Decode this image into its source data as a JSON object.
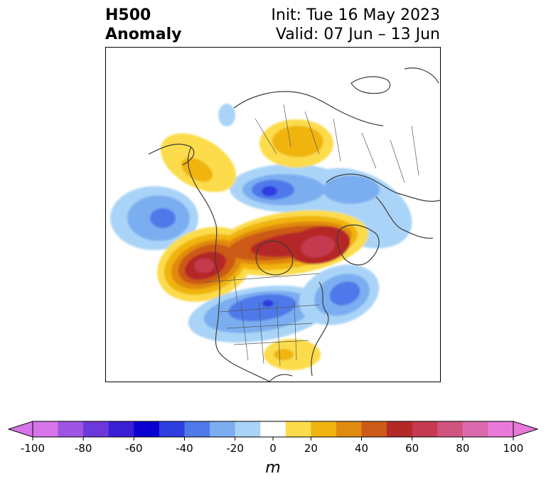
{
  "header": {
    "variable": "H500",
    "product": "Anomaly",
    "init": "Init: Tue 16 May 2023",
    "valid": "Valid: 07 Jun – 13 Jun"
  },
  "map": {
    "region": "North America / Arctic (polar stereographic)",
    "anomaly_centers": [
      {
        "name": "ridge-northwest-canada",
        "sign": "positive",
        "value_m": 70
      },
      {
        "name": "ridge-canadian-archipelago",
        "sign": "positive",
        "value_m": 70
      },
      {
        "name": "ridge-alaska",
        "sign": "positive",
        "value_m": 20
      },
      {
        "name": "ridge-siberia",
        "sign": "positive",
        "value_m": 20
      },
      {
        "name": "ridge-southeast-us",
        "sign": "positive",
        "value_m": 15
      },
      {
        "name": "trough-north-pacific",
        "sign": "negative",
        "value_m": -40
      },
      {
        "name": "trough-arctic-siberia",
        "sign": "negative",
        "value_m": -50
      },
      {
        "name": "trough-central-us",
        "sign": "negative",
        "value_m": -40
      },
      {
        "name": "trough-north-atlantic",
        "sign": "negative",
        "value_m": -40
      },
      {
        "name": "trough-europe",
        "sign": "negative",
        "value_m": -20
      }
    ]
  },
  "colorbar": {
    "unit_label": "m",
    "ticks": [
      "-100",
      "-80",
      "-60",
      "-40",
      "-20",
      "0",
      "20",
      "40",
      "60",
      "80",
      "100"
    ],
    "levels": [
      -100,
      -90,
      -80,
      -70,
      -60,
      -50,
      -40,
      -30,
      -20,
      -10,
      10,
      20,
      30,
      40,
      50,
      60,
      70,
      80,
      90,
      100
    ],
    "colors": [
      "#d774e9",
      "#9e55e3",
      "#6b38d9",
      "#3a1fd4",
      "#0a00cf",
      "#2d3ee0",
      "#5079ea",
      "#7aaef0",
      "#a9d4f8",
      "#ffffff",
      "#fcdc4c",
      "#f0b411",
      "#e08a10",
      "#cc5a18",
      "#b52828",
      "#c43a50",
      "#d05480",
      "#db69ad",
      "#e879d9"
    ],
    "extend_low_color": "#d774e9",
    "extend_high_color": "#e879d9"
  }
}
